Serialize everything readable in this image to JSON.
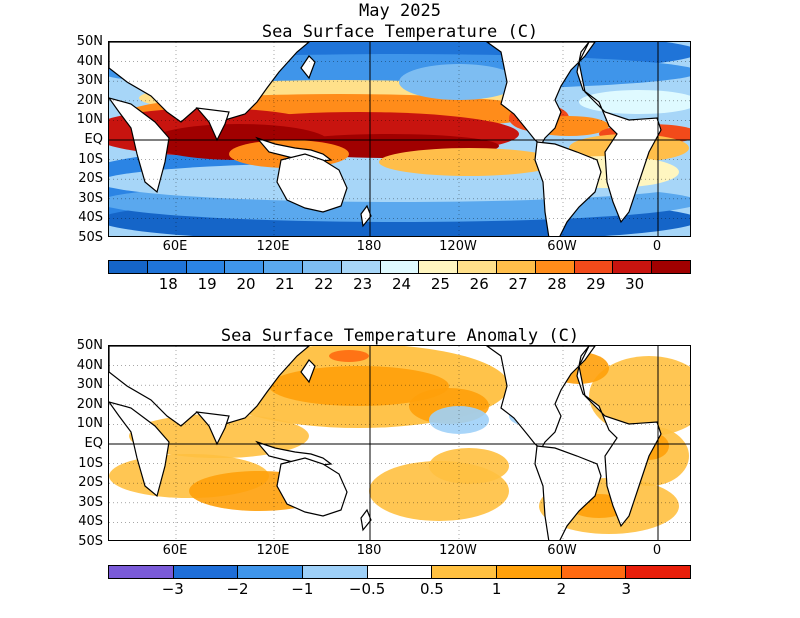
{
  "header": {
    "month": "May 2025"
  },
  "panels": [
    {
      "title": "Sea Surface Temperature (C)",
      "type": "sst",
      "y_labels": [
        "50N",
        "40N",
        "30N",
        "20N",
        "10N",
        "EQ",
        "10S",
        "20S",
        "30S",
        "40S",
        "50S"
      ],
      "x_labels": [
        "60E",
        "120E",
        "180",
        "120W",
        "60W",
        "0"
      ],
      "colorbar": {
        "colors": [
          "#1565c8",
          "#1f74d8",
          "#2b84e4",
          "#3f95ea",
          "#5aa8ee",
          "#7dbdf2",
          "#a7d6f8",
          "#dffaff",
          "#fff6c0",
          "#ffe08a",
          "#ffbe4a",
          "#ff8c1a",
          "#f24a1a",
          "#c8140f",
          "#a00000"
        ],
        "labels": [
          "18",
          "19",
          "20",
          "21",
          "22",
          "23",
          "24",
          "25",
          "26",
          "27",
          "28",
          "29",
          "30"
        ]
      }
    },
    {
      "title": "Sea Surface Temperature Anomaly (C)",
      "type": "anom",
      "y_labels": [
        "50N",
        "40N",
        "30N",
        "20N",
        "10N",
        "EQ",
        "10S",
        "20S",
        "30S",
        "40S",
        "50S"
      ],
      "x_labels": [
        "60E",
        "120E",
        "180",
        "120W",
        "60W",
        "0"
      ],
      "colorbar": {
        "colors": [
          "#7a5ad8",
          "#1e6ed8",
          "#3f95ea",
          "#9ed0f8",
          "#ffffff",
          "#ffc040",
          "#ffa00a",
          "#ff6a10",
          "#e81e0a"
        ],
        "labels": [
          "−3",
          "−2",
          "−1",
          "−0.5",
          "0.5",
          "1",
          "2",
          "3"
        ]
      }
    }
  ]
}
